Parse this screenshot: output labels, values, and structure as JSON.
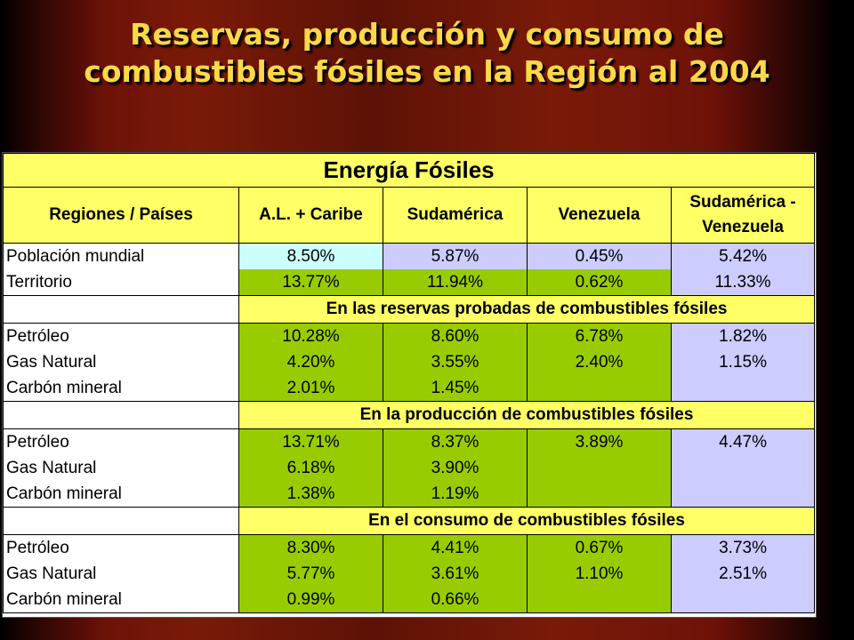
{
  "slide": {
    "title_line1": "Reservas, producción y consumo de",
    "title_line2": "combustibles fósiles en la Región al 2004"
  },
  "table": {
    "title": "Energía Fósiles",
    "headers": [
      "Regiones / Países",
      "A.L. + Caribe",
      "Sudamérica",
      "Venezuela",
      "Sudamérica - Venezuela"
    ],
    "general": {
      "labels": [
        "Población mundial",
        "Territorio"
      ],
      "al_caribe": [
        "8.50%",
        "13.77%"
      ],
      "sudamerica": [
        "5.87%",
        "11.94%"
      ],
      "venezuela": [
        "0.45%",
        "0.62%"
      ],
      "sud_ven": [
        "5.42%",
        "11.33%"
      ]
    },
    "sections": [
      {
        "title": "En las reservas probadas de combustibles fósiles",
        "labels": [
          "Petróleo",
          "Gas Natural",
          "Carbón mineral"
        ],
        "al_caribe": [
          "10.28%",
          "4.20%",
          "2.01%"
        ],
        "sudamerica": [
          "8.60%",
          "3.55%",
          "1.45%"
        ],
        "venezuela": [
          "6.78%",
          "2.40%",
          ""
        ],
        "sud_ven": [
          "1.82%",
          "1.15%",
          ""
        ]
      },
      {
        "title": "En la producción de combustibles fósiles",
        "labels": [
          "Petróleo",
          "Gas Natural",
          "Carbón mineral"
        ],
        "al_caribe": [
          "13.71%",
          "6.18%",
          "1.38%"
        ],
        "sudamerica": [
          "8.37%",
          "3.90%",
          "1.19%"
        ],
        "venezuela": [
          "3.89%",
          "",
          ""
        ],
        "sud_ven": [
          "4.47%",
          "",
          ""
        ]
      },
      {
        "title": "En el consumo de combustibles fósiles",
        "labels": [
          "Petróleo",
          "Gas Natural",
          "Carbón mineral"
        ],
        "al_caribe": [
          "8.30%",
          "5.77%",
          "0.99%"
        ],
        "sudamerica": [
          "4.41%",
          "3.61%",
          "0.66%"
        ],
        "venezuela": [
          "0.67%",
          "1.10%",
          ""
        ],
        "sud_ven": [
          "3.73%",
          "2.51%",
          ""
        ]
      }
    ]
  },
  "colors": {
    "title_text": "#ffd84a",
    "header_yellow": "#ffff66",
    "cell_green": "#99cc00",
    "cell_cyan": "#ccffff",
    "cell_lavender": "#ccccff"
  }
}
